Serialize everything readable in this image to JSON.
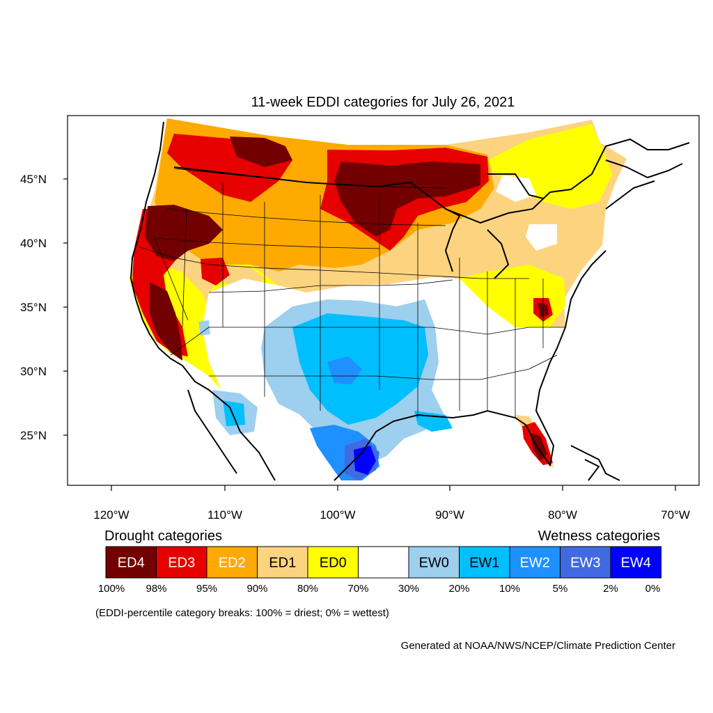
{
  "title": "11-week EDDI categories for July 26, 2021",
  "lat_labels": [
    "45°N",
    "40°N",
    "35°N",
    "30°N",
    "25°N"
  ],
  "lon_labels": [
    "120°W",
    "110°W",
    "100°W",
    "90°W",
    "80°W",
    "70°W"
  ],
  "legend": {
    "drought_heading": "Drought categories",
    "wetness_heading": "Wetness categories",
    "categories": [
      {
        "label": "ED4",
        "color": "#730000",
        "text_color": "#ffffff"
      },
      {
        "label": "ED3",
        "color": "#e60000",
        "text_color": "#ffffff"
      },
      {
        "label": "ED2",
        "color": "#ffaa00",
        "text_color": "#ffffff"
      },
      {
        "label": "ED1",
        "color": "#fcd37f",
        "text_color": "#000000"
      },
      {
        "label": "ED0",
        "color": "#ffff00",
        "text_color": "#000000"
      },
      {
        "label": "",
        "color": "#ffffff",
        "text_color": "#000000"
      },
      {
        "label": "EW0",
        "color": "#9dcfee",
        "text_color": "#000000"
      },
      {
        "label": "EW1",
        "color": "#00bfff",
        "text_color": "#000000"
      },
      {
        "label": "EW2",
        "color": "#1e90ff",
        "text_color": "#ffffff"
      },
      {
        "label": "EW3",
        "color": "#4169e1",
        "text_color": "#ffffff"
      },
      {
        "label": "EW4",
        "color": "#0000ff",
        "text_color": "#ffffff"
      }
    ],
    "percent_labels": [
      "100%",
      "98%",
      "95%",
      "90%",
      "80%",
      "70%",
      "30%",
      "20%",
      "10%",
      "5%",
      "2%",
      "0%"
    ],
    "note": "(EDDI-percentile category breaks: 100% = driest; 0% = wettest)"
  },
  "footer": "Generated at NOAA/NWS/NCEP/Climate Prediction Center"
}
